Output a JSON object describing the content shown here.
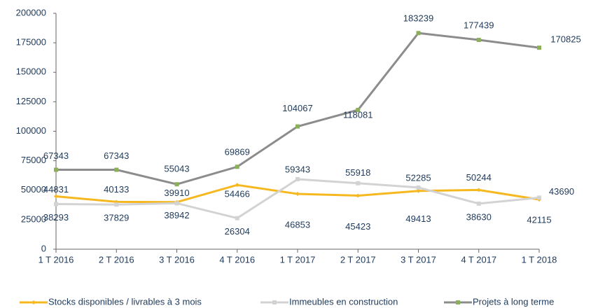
{
  "chart_data": {
    "type": "line",
    "categories": [
      "1 T 2016",
      "2 T 2016",
      "3 T 2016",
      "4 T 2016",
      "1 T 2017",
      "2 T 2017",
      "3 T 2017",
      "4 T 2017",
      "1 T 2018"
    ],
    "series": [
      {
        "name": "Stocks disponibles / livrables à 3 mois",
        "color": "#f6b81f",
        "marker_color": "#f6b81f",
        "values": [
          44831,
          40133,
          39910,
          54466,
          46853,
          45423,
          49413,
          50244,
          42115
        ]
      },
      {
        "name": "Immeubles en construction",
        "color": "#d3d3d3",
        "marker_color": "#d3d3d3",
        "values": [
          38293,
          37829,
          38942,
          26304,
          59343,
          55918,
          52285,
          38630,
          43690
        ]
      },
      {
        "name": "Projets à long terme",
        "color": "#8c8c8c",
        "marker_color": "#8cb05a",
        "values": [
          67343,
          67343,
          55043,
          69869,
          104067,
          118081,
          183239,
          177439,
          170825
        ]
      }
    ],
    "ylim": [
      0,
      200000
    ],
    "yticks": [
      0,
      25000,
      50000,
      75000,
      100000,
      125000,
      150000,
      175000,
      200000
    ],
    "legend": "bottom"
  }
}
